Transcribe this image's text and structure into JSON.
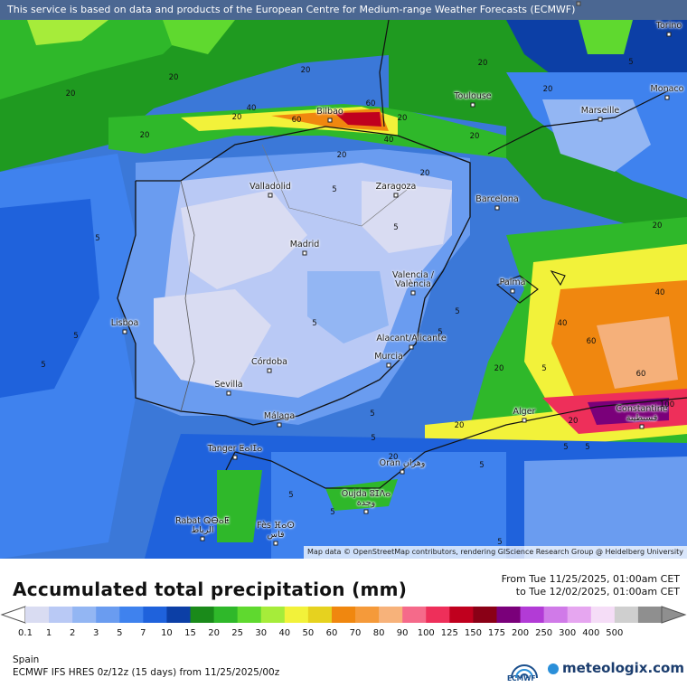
{
  "disclaimer": "This service is based on data and products of the European Centre for Medium-range Weather Forecasts (ECMWF)",
  "attribution": "Map data © OpenStreetMap contributors, rendering GIScience Research Group @ Heidelberg University",
  "title": "Accumulated total precipitation (mm)",
  "period": {
    "from": "From Tue 11/25/2025, 01:00am CET",
    "to": "to Tue 12/02/2025, 01:00am CET"
  },
  "region": "Spain",
  "model": "ECMWF IFS HRES 0z/12z (15 days) from  11/25/2025/00z",
  "brand": {
    "ecmwf": "ECMWF",
    "meteologix": "meteologix.com"
  },
  "legend": {
    "ticks": [
      "0.1",
      "1",
      "2",
      "3",
      "5",
      "7",
      "10",
      "15",
      "20",
      "25",
      "30",
      "40",
      "50",
      "60",
      "70",
      "80",
      "90",
      "100",
      "125",
      "150",
      "175",
      "200",
      "250",
      "300",
      "400",
      "500"
    ],
    "colors": [
      "#d9dcf2",
      "#b9c9f5",
      "#93b6f3",
      "#6a9cf0",
      "#3f82ee",
      "#1f62dc",
      "#0c3fa6",
      "#1a8a1a",
      "#2fb82a",
      "#5fd92f",
      "#a6ec3a",
      "#f2f23a",
      "#e6d21f",
      "#f0870f",
      "#f59a3a",
      "#f7b27a",
      "#f56a8a",
      "#ee2f5a",
      "#c0001e",
      "#8a0016",
      "#7a007a",
      "#b23bd6",
      "#d07ae8",
      "#e6a6f0",
      "#f5ddf7",
      "#cfcfcf",
      "#8f8f8f"
    ]
  },
  "cities": [
    {
      "name": "Lyon"
    },
    {
      "name": "Torino"
    },
    {
      "name": "Monaco"
    },
    {
      "name": "Toulouse"
    },
    {
      "name": "Marseille"
    },
    {
      "name": "Bilbao"
    },
    {
      "name": "Valladolid"
    },
    {
      "name": "Zaragoza"
    },
    {
      "name": "Barcelona"
    },
    {
      "name": "Madrid"
    },
    {
      "name": "Valencia /\nValència"
    },
    {
      "name": "Palma"
    },
    {
      "name": "Lisboa"
    },
    {
      "name": "Alacant/Alicante"
    },
    {
      "name": "Murcia"
    },
    {
      "name": "Córdoba"
    },
    {
      "name": "Sevilla"
    },
    {
      "name": "Málaga"
    },
    {
      "name": "Alger"
    },
    {
      "name": "Constantine\nقسنطينة"
    },
    {
      "name": "Tanger ⵟⴰⵏⵊⴰ"
    },
    {
      "name": "Oran وهران"
    },
    {
      "name": "Oujda ⵓⵊⴷⴰ\nوجدة"
    },
    {
      "name": "Rabat ⵕⴱⴰⵟ\nالرباط"
    },
    {
      "name": "Fès ⴼⴰⵙ\nفاس"
    }
  ],
  "contour_labels": [
    "20",
    "20",
    "20",
    "20",
    "20",
    "20",
    "20",
    "20",
    "40",
    "60",
    "60",
    "40",
    "20",
    "20",
    "5",
    "5",
    "5",
    "5",
    "5",
    "5",
    "5",
    "5",
    "5",
    "5",
    "5",
    "5",
    "5",
    "5",
    "5",
    "5",
    "20",
    "20",
    "40",
    "60",
    "40",
    "60",
    "100",
    "20",
    "20",
    "20",
    "5",
    "5",
    "20"
  ]
}
